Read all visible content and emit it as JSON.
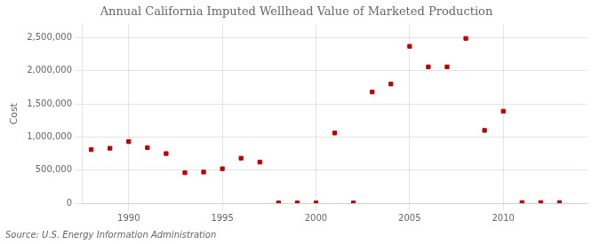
{
  "chart_data": {
    "type": "scatter",
    "title": "Annual California Imputed Wellhead Value of Marketed Production",
    "ylabel": "Cost",
    "annotation": "Source: U.S. Energy Information Administration",
    "color": "#bb0000",
    "marker": "square",
    "grid": true,
    "x": [
      1988,
      1989,
      1990,
      1991,
      1992,
      1993,
      1994,
      1995,
      1996,
      1997,
      1998,
      1999,
      2000,
      2001,
      2002,
      2003,
      2004,
      2005,
      2006,
      2007,
      2008,
      2009,
      2010,
      2011,
      2012,
      2013
    ],
    "values": [
      810000,
      830000,
      930000,
      840000,
      750000,
      460000,
      470000,
      520000,
      680000,
      620000,
      5000,
      5000,
      5000,
      1060000,
      5000,
      1680000,
      1800000,
      2370000,
      2060000,
      2060000,
      2490000,
      1100000,
      1390000,
      10000,
      10000,
      10000
    ],
    "xlim": [
      1987.5,
      2014.5
    ],
    "xticks": [
      1990,
      1995,
      2000,
      2005,
      2010
    ],
    "ylim": [
      0,
      2700000
    ],
    "yticks": [
      {
        "value": 0,
        "label": "0"
      },
      {
        "value": 500000,
        "label": "500,000"
      },
      {
        "value": 1000000,
        "label": "1,000,000"
      },
      {
        "value": 1500000,
        "label": "1,500,000"
      },
      {
        "value": 2000000,
        "label": "2,000,000"
      },
      {
        "value": 2500000,
        "label": "2,500,000"
      }
    ]
  }
}
